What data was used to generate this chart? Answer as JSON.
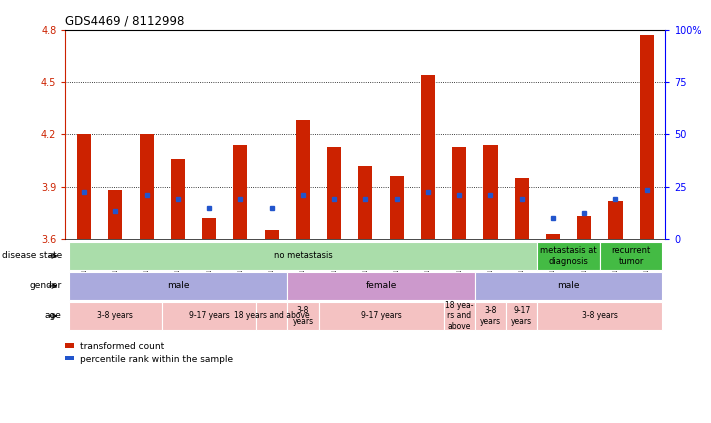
{
  "title": "GDS4469 / 8112998",
  "samples": [
    "GSM1025530",
    "GSM1025531",
    "GSM1025532",
    "GSM1025546",
    "GSM1025535",
    "GSM1025544",
    "GSM1025545",
    "GSM1025537",
    "GSM1025542",
    "GSM1025543",
    "GSM1025540",
    "GSM1025528",
    "GSM1025534",
    "GSM1025541",
    "GSM1025536",
    "GSM1025538",
    "GSM1025533",
    "GSM1025529",
    "GSM1025539"
  ],
  "red_heights": [
    4.2,
    3.88,
    4.2,
    4.06,
    3.72,
    4.14,
    3.65,
    4.28,
    4.13,
    4.02,
    3.96,
    4.54,
    4.13,
    4.14,
    3.95,
    3.63,
    3.73,
    3.82,
    4.77
  ],
  "blue_values": [
    3.87,
    3.76,
    3.85,
    3.83,
    3.78,
    3.83,
    3.78,
    3.85,
    3.83,
    3.83,
    3.83,
    3.87,
    3.85,
    3.85,
    3.83,
    3.72,
    3.75,
    3.83,
    3.88
  ],
  "ymin": 3.6,
  "ymax": 4.8,
  "yticks": [
    3.6,
    3.9,
    4.2,
    4.5,
    4.8
  ],
  "right_yticks": [
    0,
    25,
    50,
    75,
    100
  ],
  "bar_color": "#cc2200",
  "blue_color": "#2255cc",
  "disease_state_blocks": [
    {
      "label": "no metastasis",
      "start": 0,
      "end": 15,
      "color": "#aaddaa"
    },
    {
      "label": "metastasis at\ndiagnosis",
      "start": 15,
      "end": 17,
      "color": "#44bb44"
    },
    {
      "label": "recurrent\ntumor",
      "start": 17,
      "end": 19,
      "color": "#44bb44"
    }
  ],
  "gender_blocks": [
    {
      "label": "male",
      "start": 0,
      "end": 7,
      "color": "#aaaadd"
    },
    {
      "label": "female",
      "start": 7,
      "end": 13,
      "color": "#cc99cc"
    },
    {
      "label": "male",
      "start": 13,
      "end": 19,
      "color": "#aaaadd"
    }
  ],
  "age_blocks": [
    {
      "label": "3-8 years",
      "start": 0,
      "end": 3,
      "color": "#f4c2c2"
    },
    {
      "label": "9-17 years",
      "start": 3,
      "end": 6,
      "color": "#f4c2c2"
    },
    {
      "label": "18 years and above",
      "start": 6,
      "end": 7,
      "color": "#f4c2c2"
    },
    {
      "label": "3-8\nyears",
      "start": 7,
      "end": 8,
      "color": "#f4c2c2"
    },
    {
      "label": "9-17 years",
      "start": 8,
      "end": 12,
      "color": "#f4c2c2"
    },
    {
      "label": "18 yea-\nrs and\nabove",
      "start": 12,
      "end": 13,
      "color": "#f4c2c2"
    },
    {
      "label": "3-8\nyears",
      "start": 13,
      "end": 14,
      "color": "#f4c2c2"
    },
    {
      "label": "9-17\nyears",
      "start": 14,
      "end": 15,
      "color": "#f4c2c2"
    },
    {
      "label": "3-8 years",
      "start": 15,
      "end": 19,
      "color": "#f4c2c2"
    }
  ],
  "row_labels": [
    "disease state",
    "gender",
    "age"
  ],
  "legend_red": "transformed count",
  "legend_blue": "percentile rank within the sample"
}
